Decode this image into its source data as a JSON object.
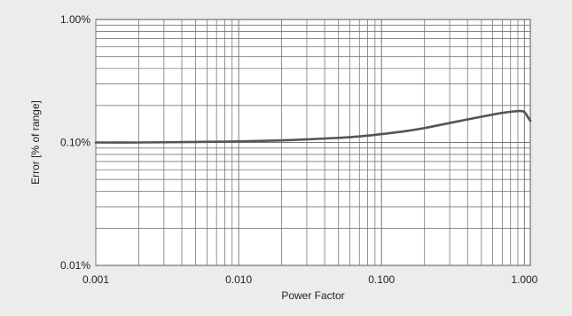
{
  "chart_data": {
    "type": "line",
    "xlabel": "Power Factor",
    "ylabel": "Error [% of range]",
    "x_scale": "log",
    "y_scale": "log",
    "xlim": [
      0.001,
      1.1
    ],
    "ylim": [
      0.01,
      1.0
    ],
    "x_ticks": [
      {
        "value": 0.001,
        "label": "0.001"
      },
      {
        "value": 0.01,
        "label": "0.010"
      },
      {
        "value": 0.1,
        "label": "0.100"
      },
      {
        "value": 1.0,
        "label": "1.000"
      }
    ],
    "y_ticks": [
      {
        "value": 0.01,
        "label": "0.01%"
      },
      {
        "value": 0.1,
        "label": "0.10%"
      },
      {
        "value": 1.0,
        "label": "1.00%"
      }
    ],
    "grid": true,
    "series": [
      {
        "color": "#555555",
        "x": [
          0.001,
          0.002,
          0.005,
          0.01,
          0.02,
          0.03,
          0.05,
          0.07,
          0.1,
          0.15,
          0.2,
          0.3,
          0.5,
          0.7,
          0.85,
          0.95,
          1.0,
          1.05,
          1.1
        ],
        "y": [
          0.1,
          0.1,
          0.101,
          0.102,
          0.104,
          0.106,
          0.109,
          0.112,
          0.117,
          0.124,
          0.131,
          0.144,
          0.162,
          0.174,
          0.179,
          0.18,
          0.177,
          0.163,
          0.15
        ]
      }
    ]
  }
}
